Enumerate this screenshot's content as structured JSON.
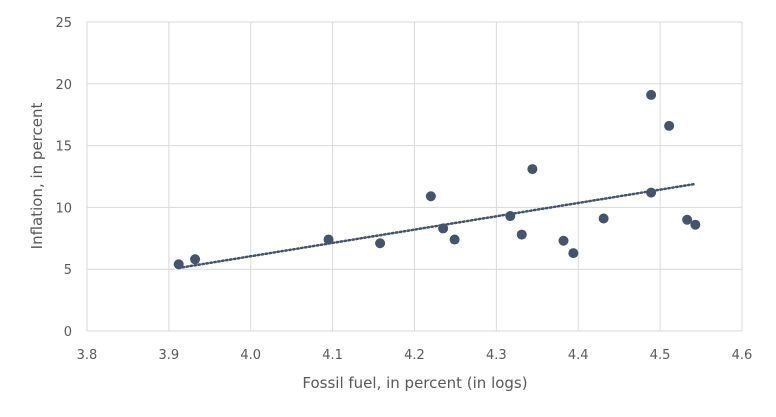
{
  "chart_data": {
    "type": "scatter",
    "title": "",
    "xlabel": "Fossil fuel, in percent (in logs)",
    "ylabel": "Inflation, in percent",
    "xlim": [
      3.8,
      4.6
    ],
    "ylim": [
      0,
      25
    ],
    "xticks": [
      "3.8",
      "3.9",
      "4.0",
      "4.1",
      "4.2",
      "4.3",
      "4.4",
      "4.5",
      "4.6"
    ],
    "yticks": [
      "0",
      "5",
      "10",
      "15",
      "20",
      "25"
    ],
    "grid": "on",
    "legend": "none",
    "series": [
      {
        "marker_color": "#44546a",
        "points": [
          {
            "x": 3.912,
            "y": 5.4
          },
          {
            "x": 3.932,
            "y": 5.8
          },
          {
            "x": 4.095,
            "y": 7.4
          },
          {
            "x": 4.158,
            "y": 7.1
          },
          {
            "x": 4.22,
            "y": 10.9
          },
          {
            "x": 4.235,
            "y": 8.3
          },
          {
            "x": 4.249,
            "y": 7.4
          },
          {
            "x": 4.317,
            "y": 9.3
          },
          {
            "x": 4.331,
            "y": 7.8
          },
          {
            "x": 4.344,
            "y": 13.1
          },
          {
            "x": 4.382,
            "y": 7.3
          },
          {
            "x": 4.394,
            "y": 6.3
          },
          {
            "x": 4.431,
            "y": 9.1
          },
          {
            "x": 4.489,
            "y": 19.1
          },
          {
            "x": 4.489,
            "y": 11.2
          },
          {
            "x": 4.511,
            "y": 16.6
          },
          {
            "x": 4.533,
            "y": 9.0
          },
          {
            "x": 4.543,
            "y": 8.6
          }
        ]
      }
    ],
    "trendline": {
      "style": "dotted",
      "color": "#44546a",
      "x_start": 3.912,
      "y_start": 5.1,
      "x_end": 4.543,
      "y_end": 11.9
    },
    "colors": {
      "grid": "#d9d9d9",
      "text": "#595959"
    }
  }
}
